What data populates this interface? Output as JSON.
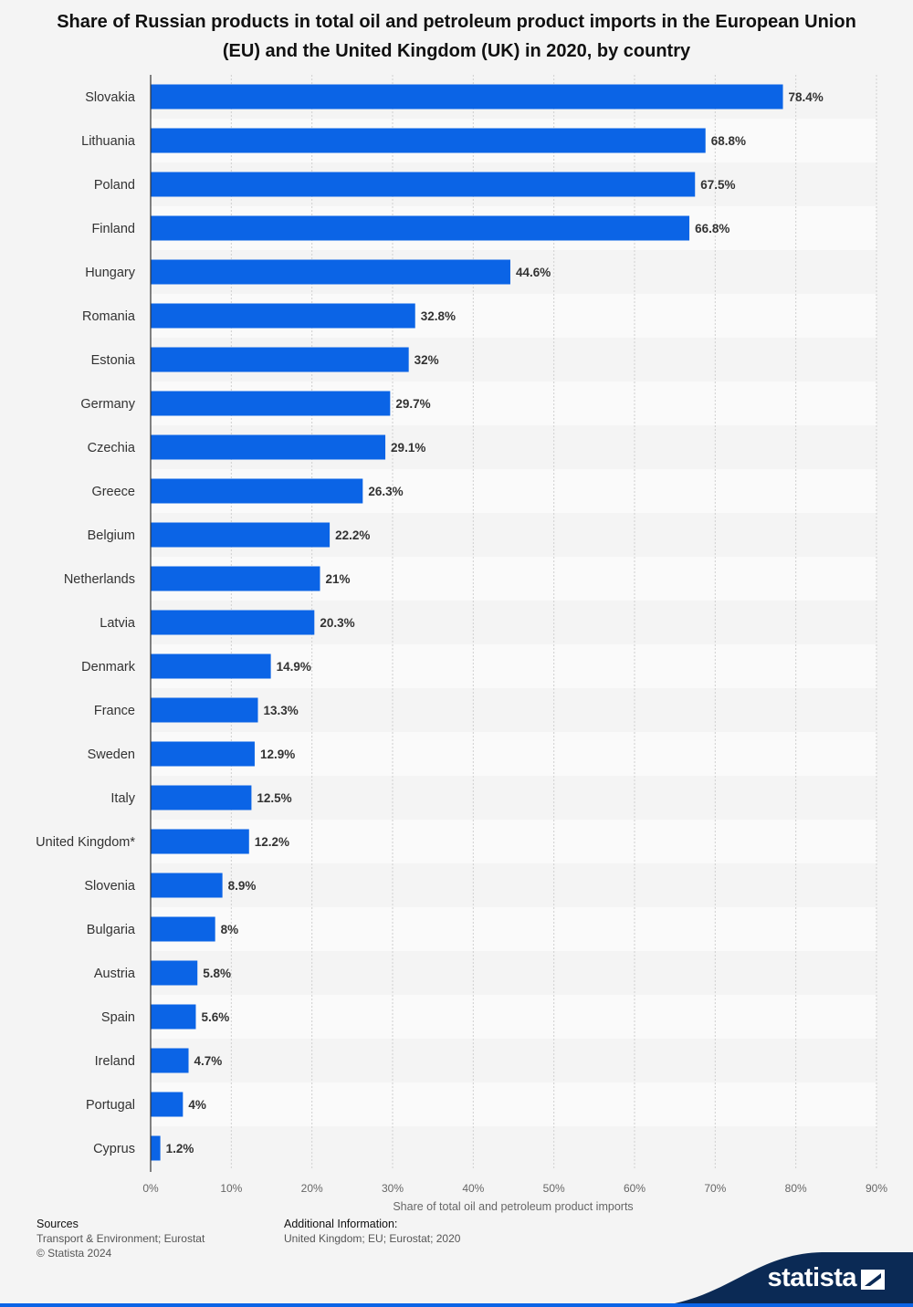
{
  "chart_data": {
    "type": "bar",
    "orientation": "horizontal",
    "title": "Share of Russian products in total oil and petroleum product imports in the European Union (EU) and the United Kingdom (UK) in 2020, by country",
    "xlabel": "Share of total oil and petroleum product imports",
    "ylabel": "",
    "xlim": [
      0,
      90
    ],
    "x_ticks": [
      "0%",
      "10%",
      "20%",
      "30%",
      "40%",
      "50%",
      "60%",
      "70%",
      "80%",
      "90%"
    ],
    "categories": [
      "Slovakia",
      "Lithuania",
      "Poland",
      "Finland",
      "Hungary",
      "Romania",
      "Estonia",
      "Germany",
      "Czechia",
      "Greece",
      "Belgium",
      "Netherlands",
      "Latvia",
      "Denmark",
      "France",
      "Sweden",
      "Italy",
      "United Kingdom*",
      "Slovenia",
      "Bulgaria",
      "Austria",
      "Spain",
      "Ireland",
      "Portugal",
      "Cyprus"
    ],
    "values": [
      78.4,
      68.8,
      67.5,
      66.8,
      44.6,
      32.8,
      32,
      29.7,
      29.1,
      26.3,
      22.2,
      21,
      20.3,
      14.9,
      13.3,
      12.9,
      12.5,
      12.2,
      8.9,
      8,
      5.8,
      5.6,
      4.7,
      4,
      1.2
    ],
    "value_labels": [
      "78.4%",
      "68.8%",
      "67.5%",
      "66.8%",
      "44.6%",
      "32.8%",
      "32%",
      "29.7%",
      "29.1%",
      "26.3%",
      "22.2%",
      "21%",
      "20.3%",
      "14.9%",
      "13.3%",
      "12.9%",
      "12.5%",
      "12.2%",
      "8.9%",
      "8%",
      "5.8%",
      "5.6%",
      "4.7%",
      "4%",
      "1.2%"
    ],
    "grid": true,
    "bar_color": "#0b64e6"
  },
  "footer": {
    "sources_heading": "Sources",
    "sources_text": "Transport & Environment; Eurostat",
    "copyright": "© Statista 2024",
    "additional_heading": "Additional Information:",
    "additional_text": "United Kingdom; EU; Eurostat; 2020"
  },
  "brand": {
    "name": "statista",
    "color": "#0b2a55"
  }
}
